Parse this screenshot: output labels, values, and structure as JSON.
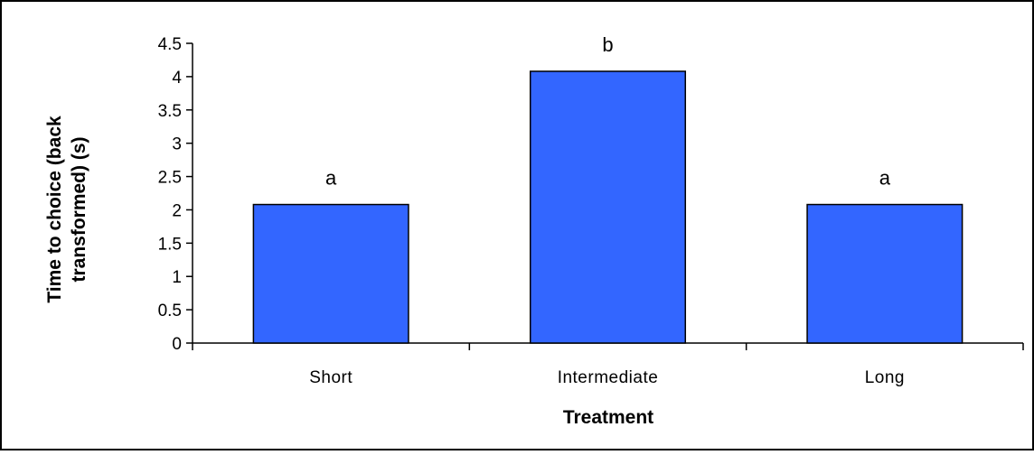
{
  "chart_data": {
    "type": "bar",
    "categories": [
      "Short",
      "Intermediate",
      "Long"
    ],
    "values": [
      2.08,
      4.08,
      2.08
    ],
    "data_labels": [
      "a",
      "b",
      "a"
    ],
    "xlabel": "Treatment",
    "ylabel_lines": [
      "Time to choice (back",
      "transformed) (s)"
    ],
    "ylim": [
      0,
      4.5
    ],
    "yticks": [
      0,
      0.5,
      1,
      1.5,
      2,
      2.5,
      3,
      3.5,
      4,
      4.5
    ],
    "ytick_labels": [
      "0",
      "0.5",
      "1",
      "1.5",
      "2",
      "2.5",
      "3",
      "3.5",
      "4",
      "4.5"
    ],
    "grid": false,
    "legend": "none",
    "bar_color": "#3366FF",
    "bar_edge_color": "#000000"
  }
}
